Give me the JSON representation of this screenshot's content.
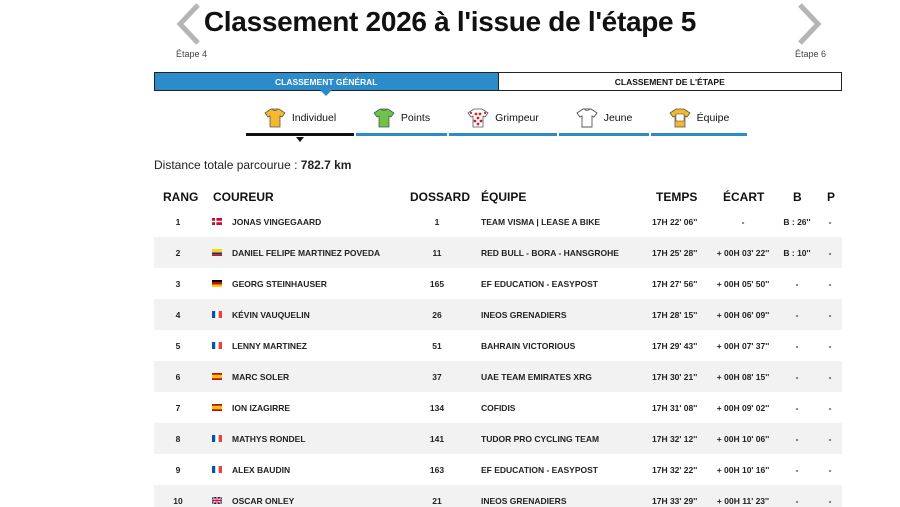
{
  "page": {
    "title": "Classement 2026 à l'issue de l'étape 5",
    "prev_label": "Étape 4",
    "next_label": "Étape 6"
  },
  "main_tabs": [
    {
      "label": "CLASSEMENT GÉNÉRAL",
      "active": true
    },
    {
      "label": "CLASSEMENT DE L'ÉTAPE",
      "active": false
    }
  ],
  "sub_tabs": [
    {
      "label": "Individuel",
      "icon": "yellow-jersey-icon",
      "color": "#f5b82e",
      "active": true
    },
    {
      "label": "Points",
      "icon": "green-jersey-icon",
      "color": "#6cc24a",
      "active": false
    },
    {
      "label": "Grimpeur",
      "icon": "polka-dot-jersey-icon",
      "color": "#d0202e",
      "active": false
    },
    {
      "label": "Jeune",
      "icon": "white-jersey-icon",
      "color": "#ffffff",
      "active": false
    },
    {
      "label": "Équipe",
      "icon": "team-jersey-icon",
      "color": "#f5b82e",
      "active": false
    }
  ],
  "distance": {
    "label": "Distance totale parcourue :",
    "value": "782.7 km"
  },
  "table": {
    "headers": {
      "rank": "RANG",
      "rider": "COUREUR",
      "bib": "DOSSARD",
      "team": "ÉQUIPE",
      "time": "TEMPS",
      "gap": "ÉCART",
      "b": "B",
      "p": "P"
    },
    "rows": [
      {
        "rank": "1",
        "flag": "DK",
        "rider": "JONAS VINGEGAARD",
        "bib": "1",
        "team": "TEAM VISMA | LEASE A BIKE",
        "time": "17H 22' 06''",
        "gap": "-",
        "b": "B : 26''",
        "p": "-"
      },
      {
        "rank": "2",
        "flag": "CO",
        "rider": "DANIEL FELIPE MARTINEZ POVEDA",
        "bib": "11",
        "team": "RED BULL - BORA - HANSGROHE",
        "time": "17H 25' 28''",
        "gap": "+ 00H 03' 22''",
        "b": "B : 10''",
        "p": "-"
      },
      {
        "rank": "3",
        "flag": "DE",
        "rider": "GEORG STEINHAUSER",
        "bib": "165",
        "team": "EF EDUCATION - EASYPOST",
        "time": "17H 27' 56''",
        "gap": "+ 00H 05' 50''",
        "b": "-",
        "p": "-"
      },
      {
        "rank": "4",
        "flag": "FR",
        "rider": "KÉVIN VAUQUELIN",
        "bib": "26",
        "team": "INEOS GRENADIERS",
        "time": "17H 28' 15''",
        "gap": "+ 00H 06' 09''",
        "b": "-",
        "p": "-"
      },
      {
        "rank": "5",
        "flag": "FR",
        "rider": "LENNY MARTINEZ",
        "bib": "51",
        "team": "BAHRAIN VICTORIOUS",
        "time": "17H 29' 43''",
        "gap": "+ 00H 07' 37''",
        "b": "-",
        "p": "-"
      },
      {
        "rank": "6",
        "flag": "ES",
        "rider": "MARC SOLER",
        "bib": "37",
        "team": "UAE TEAM EMIRATES XRG",
        "time": "17H 30' 21''",
        "gap": "+ 00H 08' 15''",
        "b": "-",
        "p": "-"
      },
      {
        "rank": "7",
        "flag": "ES",
        "rider": "ION IZAGIRRE",
        "bib": "134",
        "team": "COFIDIS",
        "time": "17H 31' 08''",
        "gap": "+ 00H 09' 02''",
        "b": "-",
        "p": "-"
      },
      {
        "rank": "8",
        "flag": "FR",
        "rider": "MATHYS RONDEL",
        "bib": "141",
        "team": "TUDOR PRO CYCLING TEAM",
        "time": "17H 32' 12''",
        "gap": "+ 00H 10' 06''",
        "b": "-",
        "p": "-"
      },
      {
        "rank": "9",
        "flag": "FR",
        "rider": "ALEX BAUDIN",
        "bib": "163",
        "team": "EF EDUCATION - EASYPOST",
        "time": "17H 32' 22''",
        "gap": "+ 00H 10' 16''",
        "b": "-",
        "p": "-"
      },
      {
        "rank": "10",
        "flag": "GB",
        "rider": "OSCAR ONLEY",
        "bib": "21",
        "team": "INEOS GRENADIERS",
        "time": "17H 33' 29''",
        "gap": "+ 00H 11' 23''",
        "b": "-",
        "p": "-"
      }
    ]
  },
  "colors": {
    "accent": "#2b8cc9",
    "row_alt": "#f2f2f2"
  }
}
